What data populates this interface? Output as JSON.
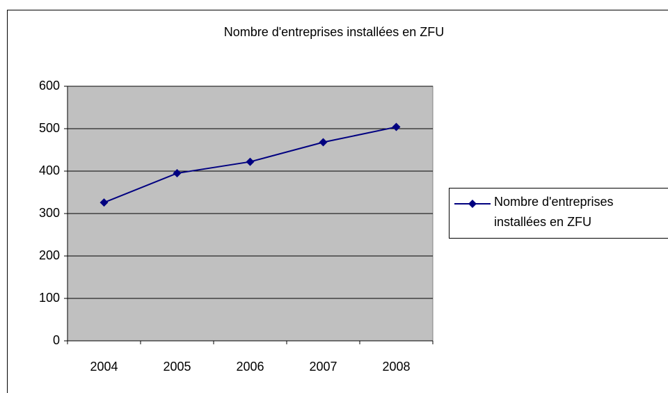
{
  "chart_data": {
    "type": "line",
    "title": "Nombre d'entreprises installées en ZFU",
    "categories": [
      "2004",
      "2005",
      "2006",
      "2007",
      "2008"
    ],
    "series": [
      {
        "name": "Nombre d'entreprises installées en ZFU",
        "color": "#000080",
        "values": [
          326,
          395,
          422,
          468,
          504
        ]
      }
    ],
    "ylim": [
      0,
      600
    ],
    "yticks": [
      0,
      100,
      200,
      300,
      400,
      500,
      600
    ],
    "grid": true,
    "legend": "right",
    "plot_background": "#c0c0c0"
  }
}
